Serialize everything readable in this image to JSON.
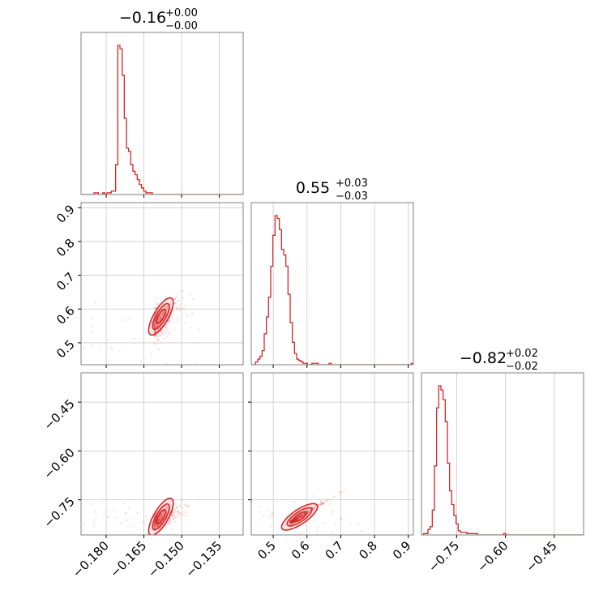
{
  "chart_data": {
    "type": "corner",
    "color": "#d62728",
    "grid": true,
    "parameters": [
      {
        "title_value": "−0.16",
        "title_plus": "+0.00",
        "title_minus": "−0.00",
        "range": [
          -0.19,
          -0.1255
        ],
        "ticks": [
          -0.18,
          -0.165,
          -0.15,
          -0.135
        ],
        "tick_labels": [
          "−0.180",
          "−0.165",
          "−0.150",
          "−0.135"
        ],
        "hist": {
          "edges_start": -0.19,
          "bin_width": 0.00086,
          "counts": [
            0,
            0,
            0,
            0,
            0,
            0,
            1,
            1,
            0,
            0,
            1,
            0,
            1,
            1,
            2,
            2,
            18,
            90,
            88,
            72,
            46,
            28,
            26,
            18,
            14,
            12,
            9,
            6,
            4,
            2,
            1,
            1,
            1,
            0,
            0,
            0,
            0,
            0,
            0,
            0,
            0,
            0,
            0,
            0,
            0,
            0,
            0,
            0,
            0,
            0,
            0,
            0,
            0,
            0,
            0,
            0,
            0,
            0,
            0,
            0,
            0,
            0,
            0,
            0,
            0,
            0,
            0,
            0,
            0,
            0,
            0,
            0,
            0,
            0,
            0
          ]
        }
      },
      {
        "title_value": "0.55",
        "title_plus": "+0.03",
        "title_minus": "−0.03",
        "range": [
          0.435,
          0.915
        ],
        "ticks": [
          0.5,
          0.6,
          0.7,
          0.8,
          0.9
        ],
        "tick_labels": [
          "0.5",
          "0.6",
          "0.7",
          "0.8",
          "0.9"
        ],
        "hist": {
          "edges_start": 0.435,
          "bin_width": 0.0064,
          "counts": [
            0,
            0,
            2,
            4,
            6,
            10,
            22,
            34,
            48,
            70,
            92,
            106,
            104,
            96,
            82,
            78,
            70,
            50,
            30,
            16,
            8,
            4,
            3,
            2,
            1,
            1,
            0,
            0,
            1,
            1,
            1,
            0,
            0,
            0,
            0,
            0,
            1,
            0,
            0,
            0,
            0,
            0,
            0,
            0,
            0,
            0,
            0,
            0,
            0,
            0,
            0,
            0,
            0,
            0,
            0,
            0,
            0,
            0,
            0,
            0,
            0,
            0,
            0,
            0,
            0,
            0,
            0,
            0,
            0,
            0,
            0,
            0,
            0,
            0,
            1
          ]
        }
      },
      {
        "title_value": "−0.82",
        "title_plus": "+0.02",
        "title_minus": "−0.02",
        "range": [
          -0.858,
          -0.36
        ],
        "ticks": [
          -0.75,
          -0.6,
          -0.45
        ],
        "tick_labels": [
          "−0.75",
          "−0.60",
          "−0.45"
        ],
        "hist": {
          "edges_start": -0.858,
          "bin_width": 0.00664,
          "counts": [
            0,
            1,
            1,
            4,
            6,
            18,
            50,
            92,
            108,
            105,
            98,
            82,
            52,
            32,
            22,
            14,
            8,
            3,
            2,
            2,
            2,
            1,
            1,
            1,
            1,
            1,
            0,
            0,
            0,
            0,
            0,
            0,
            0,
            0,
            0,
            0,
            0,
            0,
            1,
            0,
            0,
            0,
            0,
            0,
            0,
            0,
            0,
            0,
            0,
            0,
            0,
            0,
            0,
            0,
            0,
            0,
            0,
            0,
            0,
            0,
            0,
            0,
            0,
            0,
            0,
            0,
            0,
            0,
            0,
            0,
            0,
            0,
            0,
            0,
            0
          ]
        }
      }
    ]
  }
}
